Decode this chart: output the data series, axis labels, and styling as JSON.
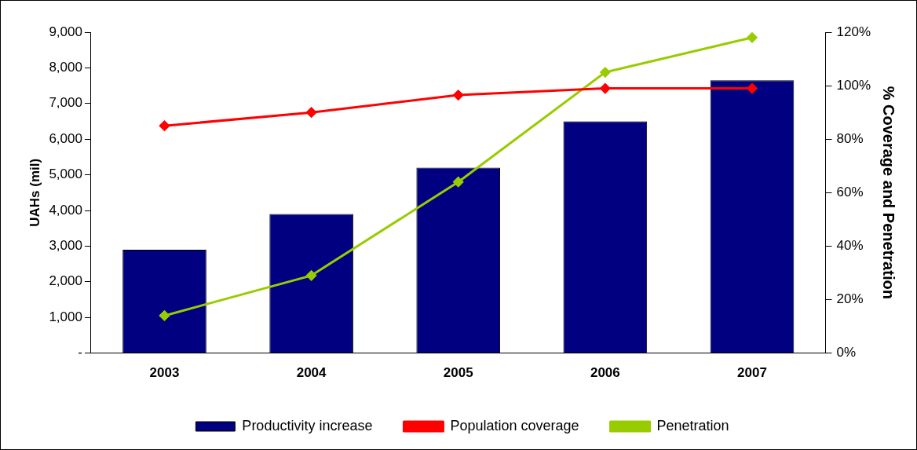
{
  "chart_data": {
    "type": "bar",
    "ylabel": "UAHs (mil)",
    "y2label": "% Coverage and Penetration",
    "categories": [
      "2003",
      "2004",
      "2005",
      "2006",
      "2007"
    ],
    "series": [
      {
        "name": "Productivity increase",
        "color": "#000080",
        "values": [
          2900,
          3900,
          5200,
          6500,
          7650
        ]
      },
      {
        "name": "Population coverage",
        "type": "line",
        "axis": "y2",
        "color": "#ff0000",
        "values": [
          85,
          90,
          96.5,
          99,
          99
        ]
      },
      {
        "name": "Penetration",
        "type": "line",
        "axis": "y2",
        "color": "#99cc00",
        "values": [
          14,
          29,
          64,
          105,
          118
        ]
      }
    ],
    "ylim": [
      0,
      9000
    ],
    "yticks": [
      {
        "value": 0,
        "label": "-"
      },
      {
        "value": 1000,
        "label": "1,000"
      },
      {
        "value": 2000,
        "label": "2,000"
      },
      {
        "value": 3000,
        "label": "3,000"
      },
      {
        "value": 4000,
        "label": "4,000"
      },
      {
        "value": 5000,
        "label": "5,000"
      },
      {
        "value": 6000,
        "label": "6,000"
      },
      {
        "value": 7000,
        "label": "7,000"
      },
      {
        "value": 8000,
        "label": "8,000"
      },
      {
        "value": 9000,
        "label": "9,000"
      }
    ],
    "y2lim": [
      0,
      120
    ],
    "y2ticks": [
      {
        "value": 0,
        "label": "0%"
      },
      {
        "value": 20,
        "label": "20%"
      },
      {
        "value": 40,
        "label": "40%"
      },
      {
        "value": 60,
        "label": "60%"
      },
      {
        "value": 80,
        "label": "80%"
      },
      {
        "value": 100,
        "label": "100%"
      },
      {
        "value": 120,
        "label": "120%"
      }
    ],
    "legend": "bottom",
    "marker": "diamond",
    "grid": false
  }
}
